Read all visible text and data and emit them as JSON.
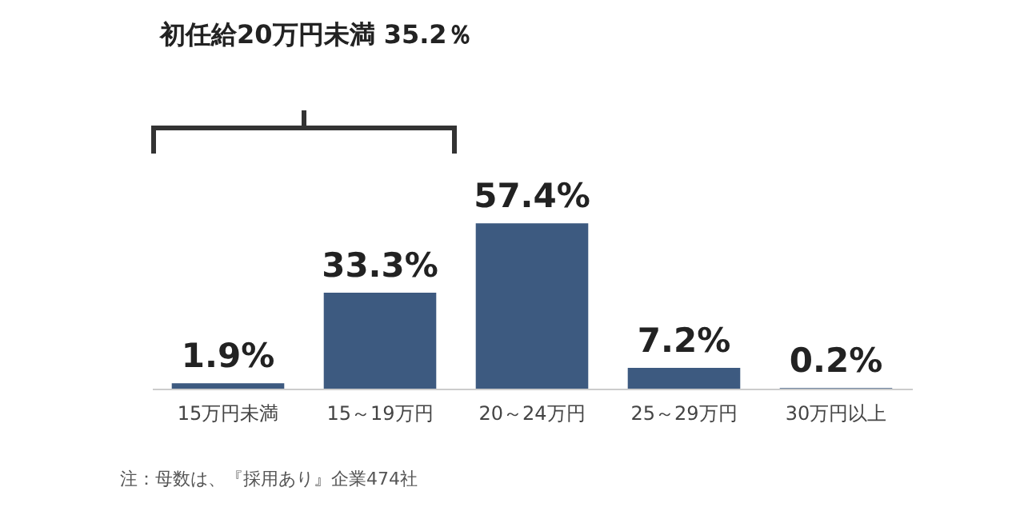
{
  "chart_data": {
    "type": "bar",
    "categories": [
      "15万円未満",
      "15～19万円",
      "20～24万円",
      "25～29万円",
      "30万円以上"
    ],
    "values": [
      1.9,
      33.3,
      57.4,
      7.2,
      0.2
    ],
    "color": "#3d5a80",
    "value_labels": [
      "1.9%",
      "33.3%",
      "57.4%",
      "7.2%",
      "0.2%"
    ],
    "annotations": [
      "初任給20万円未満 35.2％",
      "注：母数は、『採用あり』企業474社"
    ]
  }
}
